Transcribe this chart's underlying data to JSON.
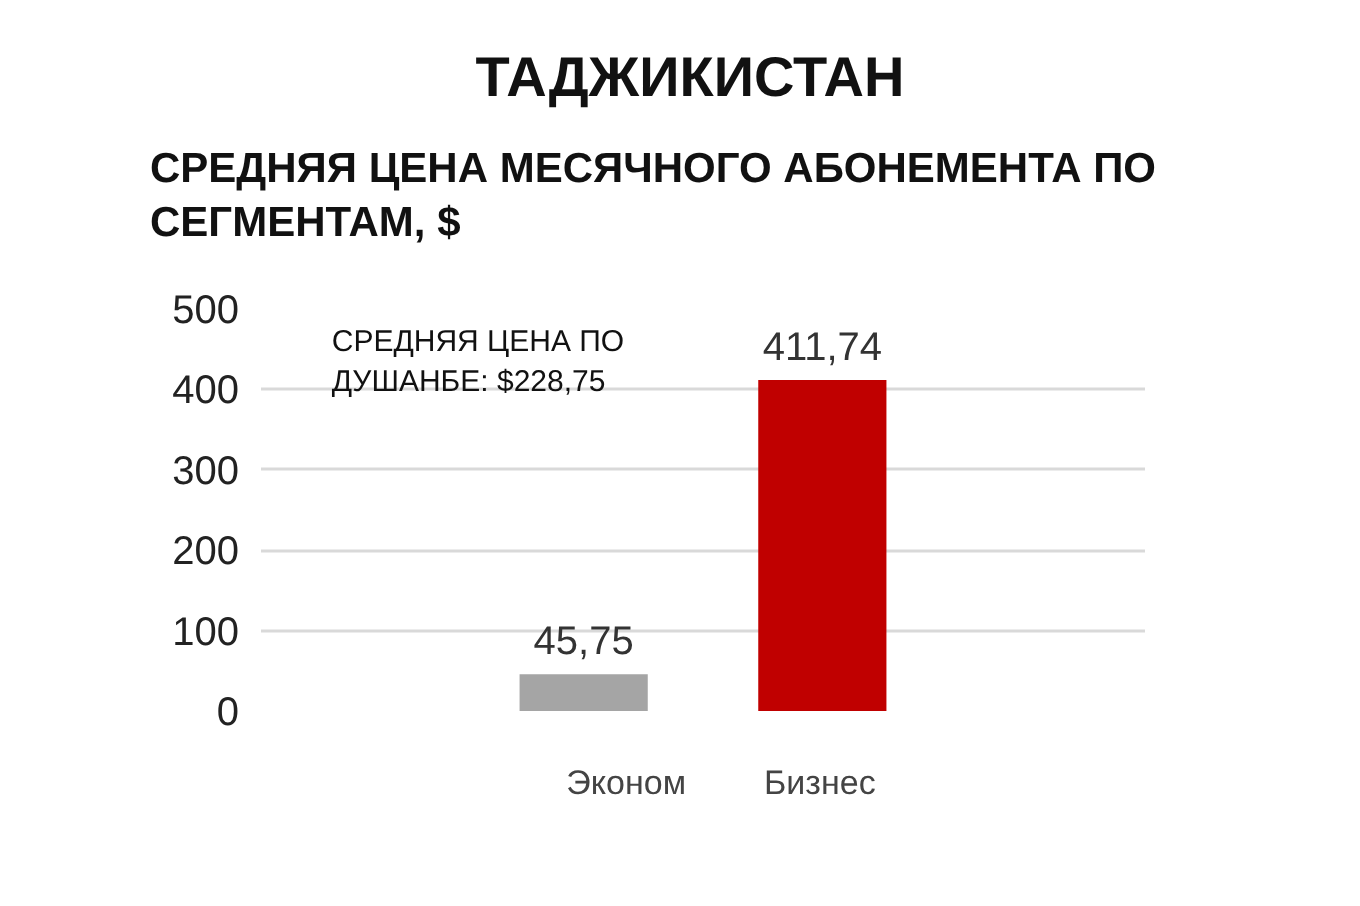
{
  "chart_data": {
    "type": "bar",
    "title": "ТАДЖИКИСТАН",
    "subtitle": "СРЕДНЯЯ ЦЕНА МЕСЯЧНОГО АБОНЕМЕНТА ПО СЕГМЕНТАМ, $",
    "categories": [
      null
    ],
    "series": [
      {
        "name": "Эконом",
        "color": "#a5a5a5",
        "values": [
          45.75
        ],
        "value_labels": [
          "45,75"
        ]
      },
      {
        "name": "Бизнес",
        "color": "#c00000",
        "values": [
          411.74
        ],
        "value_labels": [
          "411,74"
        ]
      }
    ],
    "annotations": [
      "СРЕДНЯЯ ЦЕНА ПО ДУШАНБЕ: $228,75"
    ],
    "ylim": [
      0,
      500
    ],
    "yticks": [
      0,
      100,
      200,
      300,
      400,
      500
    ],
    "grid": "y",
    "legend": "bottom",
    "tick_labels": "y"
  }
}
